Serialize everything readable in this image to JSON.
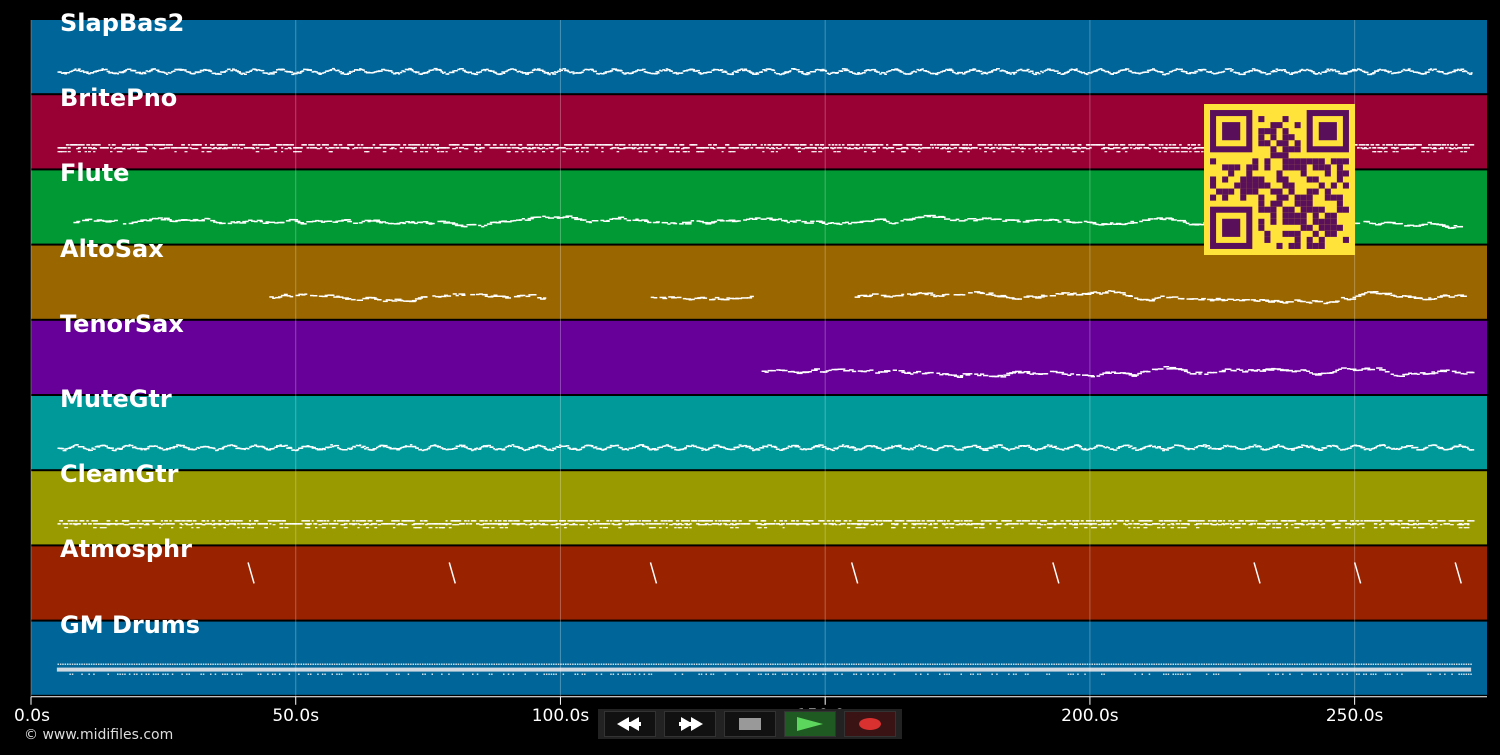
{
  "tracks": [
    {
      "name": "SlapBas2",
      "color": "#006699",
      "pattern": "bass",
      "start": 5,
      "end": 272
    },
    {
      "name": "BritePno",
      "color": "#990033",
      "pattern": "block",
      "start": 5,
      "end": 272
    },
    {
      "name": "Flute",
      "color": "#009933",
      "pattern": "melody",
      "start": 8,
      "end": 270
    },
    {
      "name": "AltoSax",
      "color": "#996600",
      "pattern": "melody",
      "start": 45,
      "end": 270,
      "gaps": [
        [
          97,
          117
        ],
        [
          136,
          155
        ]
      ]
    },
    {
      "name": "TenorSax",
      "color": "#660099",
      "pattern": "melody",
      "start": 138,
      "end": 272
    },
    {
      "name": "MuteGtr",
      "color": "#009999",
      "pattern": "bass",
      "start": 5,
      "end": 272
    },
    {
      "name": "CleanGtr",
      "color": "#999900",
      "pattern": "block",
      "start": 5,
      "end": 272
    },
    {
      "name": "Atmosphr",
      "color": "#992200",
      "pattern": "stroke",
      "strokes": [
        41,
        79,
        117,
        155,
        193,
        231,
        250,
        269
      ]
    },
    {
      "name": "GM Drums",
      "color": "#006699",
      "pattern": "drums",
      "start": 3,
      "end": 272
    }
  ],
  "timeline": {
    "duration": 275,
    "ticks": [
      {
        "value": 0,
        "label": "0.0s"
      },
      {
        "value": 50,
        "label": "50.0s"
      },
      {
        "value": 100,
        "label": "100.0s"
      },
      {
        "value": 150,
        "label": "150.0s"
      },
      {
        "value": 200,
        "label": "200.0s"
      },
      {
        "value": 250,
        "label": "250.0s"
      }
    ]
  },
  "copyright": "© www.midifiles.com",
  "transport": {
    "rewind": "rewind-icon",
    "forward": "fast-forward-icon",
    "stop": "stop-icon",
    "play": "play-icon",
    "record": "record-icon",
    "play_color": "#5cd65c",
    "record_color": "#d93030",
    "stop_color": "#999999"
  },
  "qr": {
    "fg": "#5a0f5a",
    "bg": "#ffe23a"
  }
}
